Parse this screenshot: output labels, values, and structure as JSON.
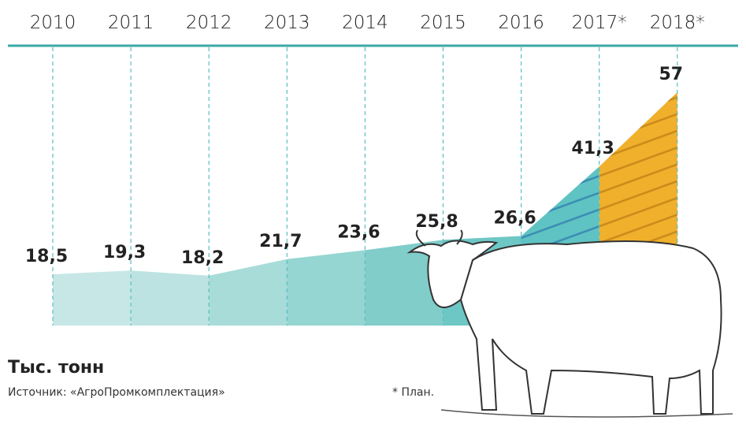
{
  "chart_data": {
    "type": "area",
    "categories": [
      "2010",
      "2011",
      "2012",
      "2013",
      "2014",
      "2015",
      "2016",
      "2017*",
      "2018*"
    ],
    "values": [
      18.5,
      19.3,
      18.2,
      21.7,
      23.6,
      25.8,
      26.6,
      41.3,
      57
    ],
    "value_labels": [
      "18,5",
      "19,3",
      "18,2",
      "21,7",
      "23,6",
      "25,8",
      "26,6",
      "41,3",
      "57"
    ],
    "segment_colors": [
      "#c6e7e5",
      "#bce3e1",
      "#a8dcd9",
      "#95d5d2",
      "#80cdca",
      "#6dc7c5",
      "#5fc3c3",
      "#f0b02c"
    ],
    "hatch_colors": [
      "#3a8cb3",
      "#c98a1a"
    ],
    "unit": "Тыс. тонн",
    "source": "Источник: «АгроПромкомплектация»",
    "note": "* План."
  }
}
